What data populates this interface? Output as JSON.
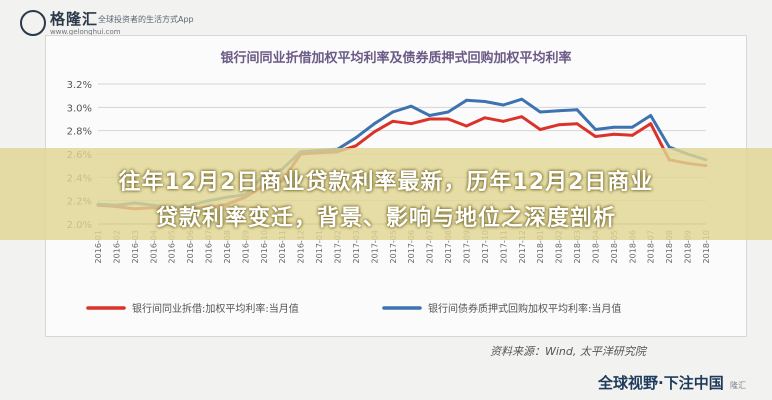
{
  "logo": {
    "brand": "格隆汇",
    "tagline": "全球投资者的生活方式App",
    "url": "www.gelonghui.com"
  },
  "headline": {
    "line1": "往年12月2日商业贷款利率最新，历年12月2日商业",
    "line2": "贷款利率变迁，背景、影响与地位之深度剖析"
  },
  "source_note": "资料来源：Wind, 太平洋研究院",
  "bottom_logo": "全球视野·下注中国",
  "watermark_text": "隆汇",
  "chart_data": {
    "type": "line",
    "title": "银行间同业折借加权平均利率及债券质押式回购加权平均利率",
    "x": [
      "2016-01",
      "2016-02",
      "2016-03",
      "2016-04",
      "2016-05",
      "2016-06",
      "2016-07",
      "2016-08",
      "2016-09",
      "2016-10",
      "2016-11",
      "2016-12",
      "2017-01",
      "2017-02",
      "2017-03",
      "2017-04",
      "2017-05",
      "2017-06",
      "2017-07",
      "2017-08",
      "2017-09",
      "2017-10",
      "2017-11",
      "2017-12",
      "2018-01",
      "2018-02",
      "2018-03",
      "2018-04",
      "2018-05",
      "2018-06",
      "2018-07",
      "2018-08",
      "2018-09",
      "2018-10"
    ],
    "ylim": [
      2.0,
      3.2
    ],
    "yticks": [
      "3.2%",
      "3.0%",
      "2.8%",
      "2.6%",
      "2.4%",
      "2.2%",
      "2.0%"
    ],
    "grid": true,
    "legend_position": "bottom",
    "series": [
      {
        "name": "银行间同业拆借:加权平均利率:当月值",
        "color": "#d9332b",
        "values": [
          2.16,
          2.15,
          2.13,
          2.14,
          2.13,
          2.14,
          2.14,
          2.17,
          2.23,
          2.33,
          2.37,
          2.6,
          2.61,
          2.62,
          2.67,
          2.79,
          2.88,
          2.86,
          2.9,
          2.9,
          2.84,
          2.91,
          2.88,
          2.92,
          2.81,
          2.85,
          2.86,
          2.75,
          2.77,
          2.76,
          2.86,
          2.55,
          2.52,
          2.5
        ]
      },
      {
        "name": "银行间债券质押式回购加权平均利率:当月值",
        "color": "#3d73b0",
        "values": [
          2.17,
          2.16,
          2.18,
          2.16,
          2.14,
          2.16,
          2.2,
          2.23,
          2.25,
          2.42,
          2.47,
          2.62,
          2.63,
          2.64,
          2.74,
          2.86,
          2.96,
          3.01,
          2.93,
          2.96,
          3.06,
          3.05,
          3.02,
          3.07,
          2.96,
          2.97,
          2.98,
          2.81,
          2.83,
          2.83,
          2.93,
          2.66,
          2.6,
          2.55
        ]
      }
    ]
  }
}
